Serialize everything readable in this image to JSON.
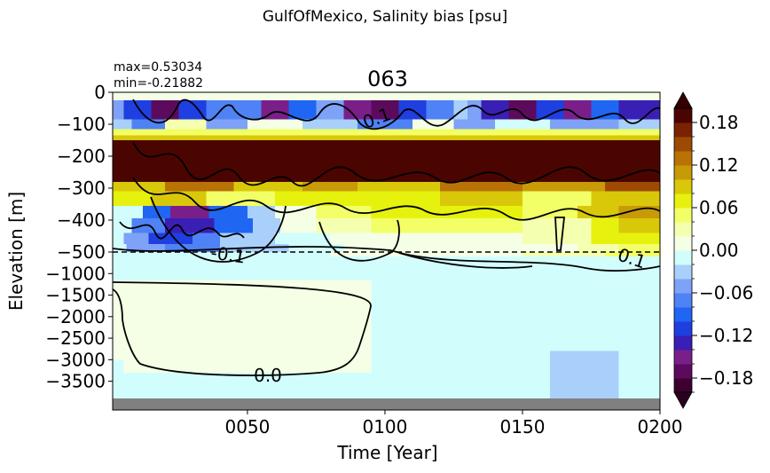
{
  "figure": {
    "suptitle": "GulfOfMexico, Salinity bias [psu]",
    "panel_title": "063",
    "stats_max": "max=0.53034",
    "stats_min": "min=-0.21882"
  },
  "chart_data": {
    "type": "heatmap",
    "title": "063",
    "xlabel": "Time [Year]",
    "ylabel": "Elevation [m]",
    "xlim": [
      1,
      200
    ],
    "x_ticks": [
      {
        "value": 50,
        "label": "0050"
      },
      {
        "value": 100,
        "label": "0100"
      },
      {
        "value": 150,
        "label": "0150"
      },
      {
        "value": 200,
        "label": "0200"
      }
    ],
    "y_scale": "piecewise: linear 0 to -500 m (upper band), linear -500 to -3900 m (lower band)",
    "y_split_depth": -500,
    "y_ticks": [
      {
        "value": 0,
        "label": "0"
      },
      {
        "value": -100,
        "label": "−100"
      },
      {
        "value": -200,
        "label": "−200"
      },
      {
        "value": -300,
        "label": "−300"
      },
      {
        "value": -400,
        "label": "−400"
      },
      {
        "value": -500,
        "label": "−500"
      },
      {
        "value": -1000,
        "label": "−1000"
      },
      {
        "value": -1500,
        "label": "−1500"
      },
      {
        "value": -2000,
        "label": "−2000"
      },
      {
        "value": -2500,
        "label": "−2500"
      },
      {
        "value": -3000,
        "label": "−3000"
      },
      {
        "value": -3500,
        "label": "−3500"
      }
    ],
    "colorbar": {
      "range": [
        -0.2,
        0.2
      ],
      "extend": "both",
      "ticks": [
        {
          "value": 0.18,
          "label": "0.18"
        },
        {
          "value": 0.12,
          "label": "0.12"
        },
        {
          "value": 0.06,
          "label": "0.06"
        },
        {
          "value": 0.0,
          "label": "0.00"
        },
        {
          "value": -0.06,
          "label": "−0.06"
        },
        {
          "value": -0.12,
          "label": "−0.12"
        },
        {
          "value": -0.18,
          "label": "−0.18"
        }
      ],
      "levels": [
        {
          "lo": -0.2,
          "hi": -0.18,
          "color": "#3d0030"
        },
        {
          "lo": -0.18,
          "hi": -0.16,
          "color": "#5c0a5c"
        },
        {
          "lo": -0.16,
          "hi": -0.14,
          "color": "#7a1f8a"
        },
        {
          "lo": -0.14,
          "hi": -0.12,
          "color": "#3a1fb5"
        },
        {
          "lo": -0.12,
          "hi": -0.1,
          "color": "#1f3fe0"
        },
        {
          "lo": -0.1,
          "hi": -0.08,
          "color": "#1f66f2"
        },
        {
          "lo": -0.08,
          "hi": -0.06,
          "color": "#4f82f5"
        },
        {
          "lo": -0.06,
          "hi": -0.04,
          "color": "#7ea2f7"
        },
        {
          "lo": -0.04,
          "hi": -0.02,
          "color": "#a8d0fa"
        },
        {
          "lo": -0.02,
          "hi": 0.0,
          "color": "#d2fdfd"
        },
        {
          "lo": 0.0,
          "hi": 0.02,
          "color": "#f4ffe6"
        },
        {
          "lo": 0.02,
          "hi": 0.04,
          "color": "#f5ffb0"
        },
        {
          "lo": 0.04,
          "hi": 0.06,
          "color": "#f2ff66"
        },
        {
          "lo": 0.06,
          "hi": 0.08,
          "color": "#e6f20d"
        },
        {
          "lo": 0.08,
          "hi": 0.1,
          "color": "#d9c80a"
        },
        {
          "lo": 0.1,
          "hi": 0.12,
          "color": "#c89a08"
        },
        {
          "lo": 0.12,
          "hi": 0.14,
          "color": "#b87206"
        },
        {
          "lo": 0.14,
          "hi": 0.16,
          "color": "#9e4a04"
        },
        {
          "lo": 0.16,
          "hi": 0.18,
          "color": "#7a2202"
        },
        {
          "lo": 0.18,
          "hi": 0.2,
          "color": "#4a0500"
        }
      ],
      "extend_low_color": "#2a0020",
      "extend_high_color": "#330000"
    },
    "contour_labels": [
      {
        "text": "0.1",
        "x": 82,
        "depth": -80
      },
      {
        "text": "-0.1",
        "x": 48,
        "depth": -500
      },
      {
        "text": "0.1",
        "x": 187,
        "depth": -520
      },
      {
        "text": "0.0",
        "x": 57,
        "depth": -3250
      }
    ],
    "depth_bands": [
      {
        "top": 0,
        "bottom": -25,
        "segments": [
          [
            1,
            200,
            0.0
          ]
        ]
      },
      {
        "top": -25,
        "bottom": -85,
        "segments": [
          [
            1,
            5,
            -0.05
          ],
          [
            5,
            15,
            -0.12
          ],
          [
            15,
            25,
            -0.17
          ],
          [
            25,
            35,
            -0.12
          ],
          [
            35,
            55,
            -0.08
          ],
          [
            55,
            65,
            -0.15
          ],
          [
            65,
            75,
            -0.1
          ],
          [
            75,
            85,
            -0.06
          ],
          [
            85,
            95,
            -0.15
          ],
          [
            95,
            105,
            -0.18
          ],
          [
            105,
            115,
            -0.11
          ],
          [
            115,
            125,
            -0.07
          ],
          [
            125,
            130,
            -0.03
          ],
          [
            130,
            135,
            -0.06
          ],
          [
            135,
            145,
            -0.14
          ],
          [
            145,
            155,
            -0.17
          ],
          [
            155,
            165,
            -0.12
          ],
          [
            165,
            175,
            -0.16
          ],
          [
            175,
            185,
            -0.1
          ],
          [
            185,
            200,
            -0.13
          ]
        ]
      },
      {
        "top": -85,
        "bottom": -115,
        "segments": [
          [
            1,
            8,
            -0.03
          ],
          [
            8,
            20,
            -0.07
          ],
          [
            20,
            35,
            0.02
          ],
          [
            35,
            50,
            -0.05
          ],
          [
            50,
            70,
            0.0
          ],
          [
            70,
            90,
            -0.04
          ],
          [
            90,
            110,
            -0.07
          ],
          [
            110,
            125,
            0.01
          ],
          [
            125,
            140,
            -0.05
          ],
          [
            140,
            160,
            -0.02
          ],
          [
            160,
            185,
            -0.06
          ],
          [
            185,
            200,
            -0.03
          ]
        ]
      },
      {
        "top": -115,
        "bottom": -135,
        "segments": [
          [
            1,
            200,
            0.05
          ]
        ]
      },
      {
        "top": -135,
        "bottom": -150,
        "segments": [
          [
            1,
            200,
            0.09
          ]
        ]
      },
      {
        "top": -150,
        "bottom": -280,
        "segments": [
          [
            1,
            200,
            0.19
          ]
        ]
      },
      {
        "top": -280,
        "bottom": -310,
        "segments": [
          [
            1,
            20,
            0.09
          ],
          [
            20,
            45,
            0.12
          ],
          [
            45,
            70,
            0.08
          ],
          [
            70,
            90,
            0.11
          ],
          [
            90,
            120,
            0.09
          ],
          [
            120,
            150,
            0.13
          ],
          [
            150,
            180,
            0.1
          ],
          [
            180,
            200,
            0.14
          ]
        ]
      },
      {
        "top": -310,
        "bottom": -355,
        "segments": [
          [
            1,
            15,
            0.06
          ],
          [
            15,
            35,
            0.08
          ],
          [
            35,
            60,
            0.05
          ],
          [
            60,
            90,
            0.07
          ],
          [
            90,
            120,
            0.06
          ],
          [
            120,
            150,
            0.08
          ],
          [
            150,
            175,
            0.05
          ],
          [
            175,
            200,
            0.09
          ]
        ]
      },
      {
        "top": -355,
        "bottom": -395,
        "segments": [
          [
            1,
            12,
            -0.01
          ],
          [
            12,
            22,
            -0.1
          ],
          [
            22,
            36,
            -0.15
          ],
          [
            36,
            50,
            -0.1
          ],
          [
            50,
            60,
            -0.04
          ],
          [
            60,
            75,
            0.01
          ],
          [
            75,
            95,
            0.05
          ],
          [
            95,
            120,
            0.06
          ],
          [
            120,
            150,
            0.07
          ],
          [
            150,
            170,
            0.04
          ],
          [
            170,
            185,
            0.09
          ],
          [
            185,
            200,
            0.1
          ]
        ]
      },
      {
        "top": -395,
        "bottom": -440,
        "segments": [
          [
            1,
            8,
            -0.01
          ],
          [
            8,
            20,
            -0.08
          ],
          [
            20,
            38,
            -0.13
          ],
          [
            38,
            52,
            -0.09
          ],
          [
            52,
            62,
            -0.03
          ],
          [
            62,
            75,
            0.01
          ],
          [
            75,
            95,
            0.03
          ],
          [
            95,
            125,
            0.05
          ],
          [
            125,
            150,
            0.04
          ],
          [
            150,
            175,
            0.02
          ],
          [
            175,
            185,
            0.06
          ],
          [
            185,
            200,
            0.08
          ]
        ]
      },
      {
        "top": -440,
        "bottom": -475,
        "segments": [
          [
            1,
            5,
            -0.01
          ],
          [
            5,
            14,
            -0.05
          ],
          [
            14,
            30,
            -0.12
          ],
          [
            30,
            40,
            -0.07
          ],
          [
            40,
            60,
            -0.04
          ],
          [
            60,
            80,
            -0.02
          ],
          [
            80,
            150,
            0.01
          ],
          [
            150,
            175,
            0.02
          ],
          [
            175,
            200,
            0.07
          ]
        ]
      },
      {
        "top": -475,
        "bottom": -500,
        "segments": [
          [
            1,
            6,
            -0.01
          ],
          [
            6,
            20,
            -0.05
          ],
          [
            20,
            40,
            -0.07
          ],
          [
            40,
            65,
            -0.03
          ],
          [
            65,
            85,
            -0.01
          ],
          [
            85,
            170,
            0.0
          ],
          [
            170,
            185,
            0.03
          ],
          [
            185,
            200,
            0.05
          ]
        ]
      },
      {
        "top": -500,
        "bottom": -650,
        "segments": [
          [
            1,
            80,
            -0.01
          ],
          [
            80,
            150,
            0.0
          ],
          [
            150,
            180,
            0.02
          ],
          [
            180,
            200,
            0.04
          ]
        ]
      },
      {
        "top": -650,
        "bottom": -1100,
        "segments": [
          [
            1,
            200,
            -0.01
          ]
        ]
      },
      {
        "top": -1100,
        "bottom": -1500,
        "segments": [
          [
            1,
            200,
            -0.01
          ]
        ]
      },
      {
        "top": -1500,
        "bottom": -3300,
        "segments": [
          [
            1,
            200,
            -0.01
          ]
        ]
      },
      {
        "top": -3300,
        "bottom": -3900,
        "segments": [
          [
            1,
            200,
            -0.01
          ]
        ]
      }
    ],
    "overlays": [
      {
        "x": [
          1,
          200
        ],
        "depth": [
          -600,
          -3900
        ],
        "value": -0.01
      },
      {
        "x": [
          1,
          5
        ],
        "depth": [
          -1150,
          -3000
        ],
        "value": 0.0
      },
      {
        "x": [
          5,
          95
        ],
        "depth": [
          -1150,
          -3300
        ],
        "value": 0.0
      },
      {
        "x": [
          150,
          160
        ],
        "depth": [
          -2500,
          -3900
        ],
        "value": -0.01
      },
      {
        "x": [
          160,
          185
        ],
        "depth": [
          -2800,
          -3900
        ],
        "value": -0.04
      },
      {
        "x": [
          140,
          150
        ],
        "depth": [
          -3300,
          -3900
        ],
        "value": -0.01
      }
    ],
    "masked_below_depth": -3900,
    "masked_color": "#808080",
    "reference_line_depth": -500
  }
}
